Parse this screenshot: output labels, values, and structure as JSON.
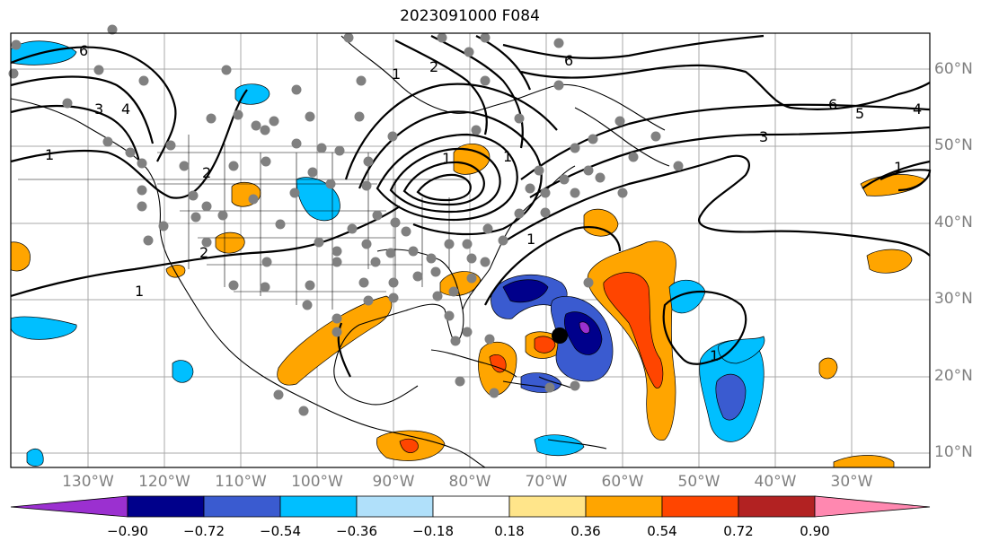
{
  "title": "2023091000 F084",
  "lat_labels": [
    "60°N",
    "50°N",
    "40°N",
    "30°N",
    "20°N",
    "10°N"
  ],
  "lon_labels": [
    "130°W",
    "120°W",
    "110°W",
    "100°W",
    "90°W",
    "80°W",
    "70°W",
    "60°W",
    "50°W",
    "40°W",
    "30°W"
  ],
  "contour_labels": [
    "6",
    "2",
    "1",
    "6",
    "1",
    "2",
    "4",
    "3",
    "1",
    "2",
    "1",
    "1",
    "6",
    "5",
    "4",
    "3",
    "1",
    "1",
    "1"
  ],
  "colorbar": {
    "ticks": [
      "−0.90",
      "−0.72",
      "−0.54",
      "−0.36",
      "−0.18",
      "0.18",
      "0.36",
      "0.54",
      "0.72",
      "0.90"
    ],
    "colors": [
      "#9b30d0",
      "#00008b",
      "#3a5bd0",
      "#00bfff",
      "#b0e0fa",
      "#ffffff",
      "#ffe58a",
      "#ffa500",
      "#ff4500",
      "#b22222",
      "#ff88b0"
    ]
  },
  "colors": {
    "neg_strong": "#00008b",
    "neg_mid": "#3a5bd0",
    "neg_weak": "#00bfff",
    "pos_weak": "#ffa500",
    "pos_mid": "#ff4500",
    "purple": "#9b30d0",
    "station": "#808080",
    "storm": "#000000"
  }
}
